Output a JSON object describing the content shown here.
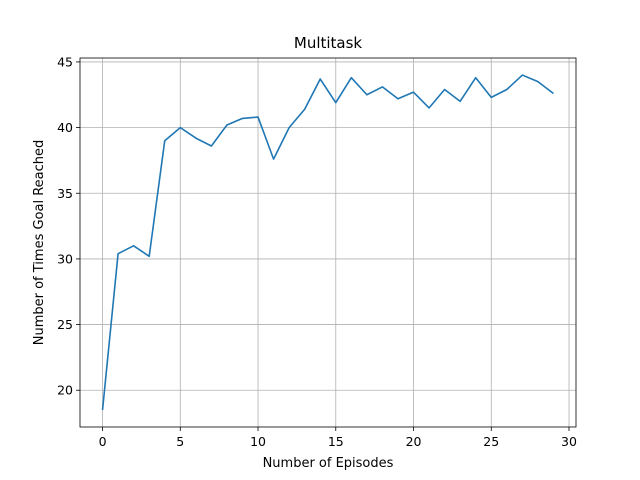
{
  "chart_data": {
    "type": "line",
    "title": "Multitask",
    "xlabel": "Number of Episodes",
    "ylabel": "Number of Times Goal Reached",
    "xlim": [
      -1.45,
      30.45
    ],
    "ylim": [
      17.2,
      45.3
    ],
    "xticks": [
      0,
      5,
      10,
      15,
      20,
      25,
      30
    ],
    "yticks": [
      20,
      25,
      30,
      35,
      40,
      45
    ],
    "grid": true,
    "series": [
      {
        "color": "#1f77b4",
        "x": [
          0,
          1,
          2,
          3,
          4,
          5,
          6,
          7,
          8,
          9,
          10,
          11,
          12,
          13,
          14,
          15,
          16,
          17,
          18,
          19,
          20,
          21,
          22,
          23,
          24,
          25,
          26,
          27,
          28,
          29
        ],
        "y": [
          18.5,
          30.4,
          31.0,
          30.2,
          39.0,
          40.0,
          39.2,
          38.6,
          40.2,
          40.7,
          40.8,
          37.6,
          40.0,
          41.4,
          43.7,
          41.9,
          43.8,
          42.5,
          43.1,
          42.2,
          42.7,
          41.5,
          42.9,
          42.0,
          43.8,
          42.3,
          42.9,
          44.0,
          43.5,
          42.6
        ]
      }
    ]
  }
}
